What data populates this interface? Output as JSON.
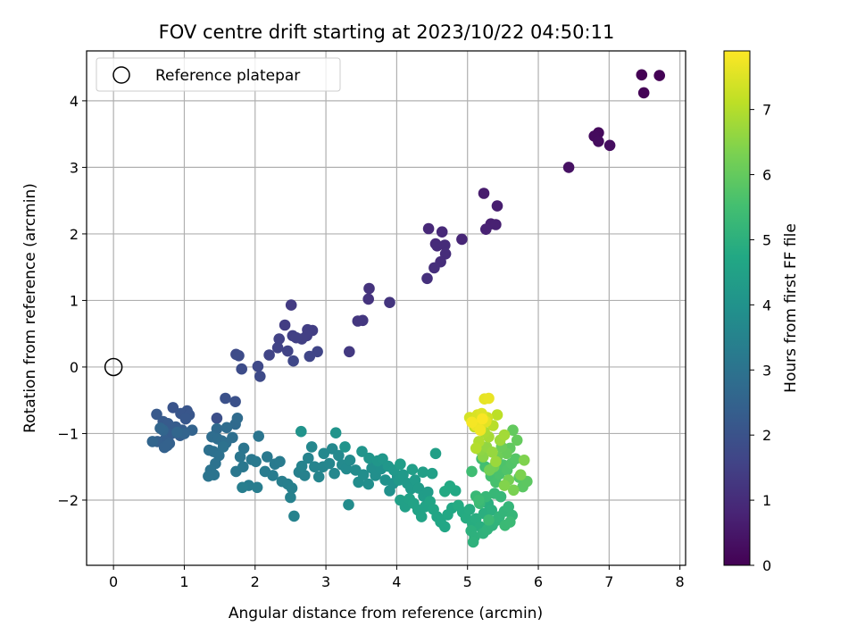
{
  "chart_data": {
    "type": "scatter",
    "title": "FOV centre drift starting at 2023/10/22 04:50:11",
    "xlabel": "Angular distance from reference (arcmin)",
    "ylabel": "Rotation from reference (arcmin)",
    "xlim": [
      -0.38,
      8.08
    ],
    "ylim": [
      -2.98,
      4.75
    ],
    "x_ticks": [
      0,
      1,
      2,
      3,
      4,
      5,
      6,
      7,
      8
    ],
    "y_ticks": [
      -2,
      -1,
      0,
      1,
      2,
      3,
      4
    ],
    "grid": true,
    "legend": {
      "position": "top-left",
      "entries": [
        "Reference platepar"
      ]
    },
    "reference_point": {
      "x": 0,
      "y": 0
    },
    "colorbar": {
      "label": "Hours from first FF file",
      "range": [
        0,
        7.9
      ],
      "ticks": [
        0,
        1,
        2,
        3,
        4,
        5,
        6,
        7
      ],
      "colormap": "viridis"
    },
    "points": [
      [
        7.46,
        4.39,
        0.0
      ],
      [
        7.71,
        4.38,
        0.02
      ],
      [
        7.49,
        4.12,
        0.05
      ],
      [
        6.85,
        3.52,
        0.2
      ],
      [
        6.79,
        3.47,
        0.22
      ],
      [
        6.85,
        3.39,
        0.25
      ],
      [
        7.01,
        3.33,
        0.28
      ],
      [
        6.43,
        3.0,
        0.35
      ],
      [
        5.23,
        2.61,
        0.6
      ],
      [
        5.42,
        2.42,
        0.65
      ],
      [
        5.33,
        2.15,
        0.7
      ],
      [
        5.4,
        2.14,
        0.72
      ],
      [
        5.26,
        2.07,
        0.75
      ],
      [
        4.92,
        1.92,
        0.85
      ],
      [
        4.45,
        2.08,
        0.9
      ],
      [
        4.64,
        2.03,
        0.92
      ],
      [
        4.55,
        1.85,
        0.95
      ],
      [
        4.57,
        1.82,
        0.97
      ],
      [
        4.68,
        1.83,
        0.98
      ],
      [
        4.69,
        1.7,
        1.0
      ],
      [
        4.62,
        1.58,
        1.02
      ],
      [
        4.53,
        1.49,
        1.05
      ],
      [
        4.43,
        1.33,
        1.08
      ],
      [
        3.61,
        1.18,
        1.15
      ],
      [
        3.6,
        1.02,
        1.18
      ],
      [
        3.9,
        0.97,
        1.2
      ],
      [
        3.45,
        0.69,
        1.25
      ],
      [
        3.52,
        0.7,
        1.27
      ],
      [
        3.33,
        0.23,
        1.3
      ],
      [
        2.51,
        0.93,
        1.35
      ],
      [
        2.42,
        0.63,
        1.4
      ],
      [
        2.81,
        0.55,
        1.42
      ],
      [
        2.74,
        0.56,
        1.43
      ],
      [
        2.73,
        0.47,
        1.45
      ],
      [
        2.66,
        0.42,
        1.47
      ],
      [
        2.53,
        0.47,
        1.48
      ],
      [
        2.58,
        0.44,
        1.5
      ],
      [
        2.34,
        0.42,
        1.52
      ],
      [
        2.32,
        0.29,
        1.55
      ],
      [
        2.46,
        0.24,
        1.57
      ],
      [
        2.2,
        0.18,
        1.6
      ],
      [
        2.88,
        0.23,
        1.62
      ],
      [
        2.77,
        0.16,
        1.65
      ],
      [
        2.54,
        0.09,
        1.68
      ],
      [
        2.04,
        0.01,
        1.72
      ],
      [
        2.07,
        -0.14,
        1.75
      ],
      [
        1.73,
        0.19,
        1.78
      ],
      [
        1.77,
        0.17,
        1.8
      ],
      [
        1.81,
        -0.03,
        1.82
      ],
      [
        1.46,
        -0.77,
        1.9
      ],
      [
        1.58,
        -0.47,
        1.95
      ],
      [
        1.72,
        -0.52,
        1.97
      ],
      [
        0.84,
        -0.61,
        2.05
      ],
      [
        1.04,
        -0.66,
        2.08
      ],
      [
        0.95,
        -0.7,
        2.1
      ],
      [
        1.07,
        -0.72,
        2.12
      ],
      [
        1.02,
        -0.78,
        2.15
      ],
      [
        0.61,
        -0.71,
        2.2
      ],
      [
        0.7,
        -0.82,
        2.22
      ],
      [
        0.77,
        -0.85,
        2.25
      ],
      [
        0.88,
        -0.9,
        2.28
      ],
      [
        0.97,
        -0.95,
        2.3
      ],
      [
        0.82,
        -1.0,
        2.32
      ],
      [
        0.94,
        -1.03,
        2.35
      ],
      [
        0.72,
        -1.1,
        2.38
      ],
      [
        0.62,
        -1.12,
        2.4
      ],
      [
        0.79,
        -1.15,
        2.42
      ],
      [
        0.72,
        -1.21,
        2.45
      ],
      [
        0.76,
        -1.18,
        2.47
      ],
      [
        1.11,
        -0.95,
        2.5
      ],
      [
        1.0,
        -1.0,
        2.52
      ],
      [
        0.7,
        -0.95,
        2.55
      ],
      [
        0.55,
        -1.12,
        2.57
      ],
      [
        0.66,
        -0.92,
        2.58
      ],
      [
        0.9,
        -0.98,
        2.6
      ],
      [
        1.46,
        -0.93,
        2.7
      ],
      [
        1.72,
        -0.86,
        2.72
      ],
      [
        1.75,
        -0.77,
        2.75
      ],
      [
        1.6,
        -0.91,
        2.77
      ],
      [
        1.39,
        -1.05,
        2.8
      ],
      [
        1.47,
        -1.08,
        2.82
      ],
      [
        1.53,
        -1.11,
        2.84
      ],
      [
        1.68,
        -1.06,
        2.86
      ],
      [
        1.59,
        -1.14,
        2.88
      ],
      [
        1.35,
        -1.25,
        2.9
      ],
      [
        1.41,
        -1.27,
        2.92
      ],
      [
        1.49,
        -1.33,
        2.94
      ],
      [
        1.55,
        -1.2,
        2.96
      ],
      [
        1.44,
        -1.45,
        2.98
      ],
      [
        1.37,
        -1.55,
        3.0
      ],
      [
        1.42,
        -1.62,
        3.02
      ],
      [
        1.34,
        -1.64,
        3.04
      ],
      [
        1.84,
        -1.22,
        3.06
      ],
      [
        2.05,
        -1.04,
        3.08
      ],
      [
        1.79,
        -1.35,
        3.1
      ],
      [
        1.73,
        -1.57,
        3.12
      ],
      [
        1.83,
        -1.5,
        3.14
      ],
      [
        1.95,
        -1.39,
        3.16
      ],
      [
        2.01,
        -1.42,
        3.18
      ],
      [
        2.17,
        -1.35,
        3.2
      ],
      [
        2.28,
        -1.46,
        3.22
      ],
      [
        2.35,
        -1.42,
        3.24
      ],
      [
        2.14,
        -1.57,
        3.26
      ],
      [
        2.25,
        -1.63,
        3.28
      ],
      [
        1.91,
        -1.78,
        3.3
      ],
      [
        2.03,
        -1.81,
        3.32
      ],
      [
        1.82,
        -1.81,
        3.34
      ],
      [
        2.38,
        -1.72,
        3.36
      ],
      [
        2.46,
        -1.76,
        3.38
      ],
      [
        2.52,
        -1.82,
        3.4
      ],
      [
        2.62,
        -1.58,
        3.42
      ],
      [
        2.7,
        -1.63,
        3.44
      ],
      [
        2.5,
        -1.96,
        3.46
      ],
      [
        2.55,
        -2.24,
        3.48
      ],
      [
        2.66,
        -1.49,
        3.5
      ],
      [
        2.75,
        -1.37,
        3.52
      ],
      [
        2.84,
        -1.5,
        3.54
      ],
      [
        2.9,
        -1.65,
        3.56
      ],
      [
        2.96,
        -1.5,
        3.58
      ],
      [
        3.05,
        -1.45,
        3.6
      ],
      [
        3.12,
        -1.6,
        3.62
      ],
      [
        2.8,
        -1.2,
        3.64
      ],
      [
        2.97,
        -1.3,
        3.66
      ],
      [
        3.09,
        -1.23,
        3.68
      ],
      [
        3.18,
        -1.33,
        3.7
      ],
      [
        3.23,
        -1.47,
        3.72
      ],
      [
        3.29,
        -1.53,
        3.74
      ],
      [
        3.34,
        -1.4,
        3.76
      ],
      [
        3.42,
        -1.55,
        3.78
      ],
      [
        3.32,
        -2.07,
        3.8
      ],
      [
        3.46,
        -1.73,
        3.82
      ],
      [
        3.53,
        -1.62,
        3.84
      ],
      [
        3.6,
        -1.76,
        3.86
      ],
      [
        3.65,
        -1.52,
        3.88
      ],
      [
        3.7,
        -1.63,
        3.9
      ],
      [
        3.78,
        -1.53,
        3.92
      ],
      [
        3.84,
        -1.7,
        3.94
      ],
      [
        3.9,
        -1.86,
        3.96
      ],
      [
        3.95,
        -1.75,
        3.98
      ],
      [
        4.01,
        -1.64,
        4.0
      ],
      [
        2.65,
        -0.97,
        4.02
      ],
      [
        3.14,
        -0.99,
        4.04
      ],
      [
        3.27,
        -1.2,
        4.06
      ],
      [
        3.51,
        -1.27,
        4.08
      ],
      [
        3.61,
        -1.37,
        4.1
      ],
      [
        3.73,
        -1.41,
        4.12
      ],
      [
        3.8,
        -1.38,
        4.14
      ],
      [
        3.88,
        -1.49,
        4.16
      ],
      [
        3.96,
        -1.55,
        4.18
      ],
      [
        4.03,
        -1.7,
        4.2
      ],
      [
        4.09,
        -1.62,
        4.22
      ],
      [
        4.15,
        -1.75,
        4.24
      ],
      [
        4.2,
        -1.83,
        4.26
      ],
      [
        4.26,
        -1.7,
        4.28
      ],
      [
        4.31,
        -1.82,
        4.3
      ],
      [
        4.38,
        -1.94,
        4.32
      ],
      [
        4.44,
        -1.88,
        4.34
      ],
      [
        4.05,
        -1.46,
        4.36
      ],
      [
        4.22,
        -1.54,
        4.38
      ],
      [
        4.37,
        -1.58,
        4.4
      ],
      [
        4.5,
        -1.6,
        4.42
      ],
      [
        4.55,
        -1.3,
        4.44
      ],
      [
        4.05,
        -2.0,
        4.46
      ],
      [
        4.12,
        -2.1,
        4.48
      ],
      [
        4.18,
        -1.98,
        4.5
      ],
      [
        4.24,
        -2.05,
        4.52
      ],
      [
        4.3,
        -2.15,
        4.54
      ],
      [
        4.35,
        -2.25,
        4.56
      ],
      [
        4.4,
        -2.1,
        4.58
      ],
      [
        4.47,
        -2.02,
        4.6
      ],
      [
        4.52,
        -2.14,
        4.62
      ],
      [
        4.57,
        -2.25,
        4.64
      ],
      [
        4.62,
        -2.33,
        4.66
      ],
      [
        4.68,
        -2.4,
        4.68
      ],
      [
        4.72,
        -2.22,
        4.7
      ],
      [
        4.78,
        -2.12,
        4.72
      ],
      [
        4.83,
        -1.86,
        4.74
      ],
      [
        4.75,
        -1.79,
        4.76
      ],
      [
        4.68,
        -1.87,
        4.78
      ],
      [
        4.87,
        -2.08,
        4.8
      ],
      [
        4.93,
        -2.18,
        4.82
      ],
      [
        4.98,
        -2.27,
        4.84
      ],
      [
        5.03,
        -2.14,
        4.86
      ],
      [
        5.07,
        -2.35,
        4.88
      ],
      [
        5.12,
        -2.28,
        4.9
      ],
      [
        5.18,
        -2.4,
        4.92
      ],
      [
        5.23,
        -2.2,
        4.94
      ],
      [
        5.29,
        -2.05,
        4.96
      ],
      [
        5.34,
        -2.15,
        4.98
      ],
      [
        5.05,
        -2.46,
        5.0
      ],
      [
        5.1,
        -2.55,
        5.02
      ],
      [
        5.08,
        -2.63,
        5.04
      ],
      [
        5.22,
        -2.5,
        5.06
      ],
      [
        5.28,
        -2.44,
        5.08
      ],
      [
        5.35,
        -2.38,
        5.1
      ],
      [
        5.4,
        -2.31,
        5.12
      ],
      [
        5.45,
        -2.25,
        5.14
      ],
      [
        5.52,
        -2.17,
        5.16
      ],
      [
        5.58,
        -2.1,
        5.18
      ],
      [
        5.63,
        -2.23,
        5.2
      ],
      [
        5.47,
        -1.95,
        5.22
      ],
      [
        5.38,
        -1.9,
        5.24
      ],
      [
        5.26,
        -1.95,
        5.26
      ],
      [
        5.12,
        -1.94,
        5.28
      ],
      [
        5.17,
        -2.05,
        5.3
      ],
      [
        5.53,
        -2.38,
        5.32
      ],
      [
        5.6,
        -2.33,
        5.34
      ],
      [
        5.3,
        -2.3,
        5.36
      ],
      [
        5.16,
        -2.0,
        5.38
      ],
      [
        5.06,
        -1.57,
        5.42
      ],
      [
        5.2,
        -1.38,
        5.46
      ],
      [
        5.25,
        -1.5,
        5.5
      ],
      [
        5.33,
        -1.64,
        5.54
      ],
      [
        5.4,
        -1.73,
        5.58
      ],
      [
        5.45,
        -1.61,
        5.62
      ],
      [
        5.5,
        -1.47,
        5.66
      ],
      [
        5.56,
        -1.55,
        5.7
      ],
      [
        5.62,
        -1.45,
        5.74
      ],
      [
        5.68,
        -1.38,
        5.78
      ],
      [
        5.73,
        -1.66,
        5.82
      ],
      [
        5.78,
        -1.8,
        5.86
      ],
      [
        5.84,
        -1.72,
        5.9
      ],
      [
        5.6,
        -1.22,
        5.94
      ],
      [
        5.64,
        -0.95,
        5.98
      ],
      [
        5.7,
        -1.1,
        6.02
      ],
      [
        5.55,
        -1.3,
        6.06
      ],
      [
        5.48,
        -1.2,
        6.1
      ],
      [
        5.42,
        -1.35,
        6.14
      ],
      [
        5.37,
        -1.5,
        6.18
      ],
      [
        5.31,
        -1.55,
        6.22
      ],
      [
        5.58,
        -1.7,
        6.26
      ],
      [
        5.65,
        -1.85,
        6.3
      ],
      [
        5.75,
        -1.62,
        6.34
      ],
      [
        5.8,
        -1.4,
        6.38
      ],
      [
        5.52,
        -1.78,
        6.42
      ],
      [
        5.22,
        -1.35,
        6.5
      ],
      [
        5.18,
        -1.25,
        6.55
      ],
      [
        5.27,
        -1.2,
        6.6
      ],
      [
        5.35,
        -1.28,
        6.65
      ],
      [
        5.4,
        -1.42,
        6.7
      ],
      [
        5.46,
        -1.1,
        6.75
      ],
      [
        5.52,
        -1.02,
        6.8
      ],
      [
        5.3,
        -1.05,
        6.85
      ],
      [
        5.24,
        -0.98,
        6.9
      ],
      [
        5.16,
        -1.12,
        6.95
      ],
      [
        5.12,
        -1.22,
        7.0
      ],
      [
        5.36,
        -0.88,
        7.05
      ],
      [
        5.42,
        -0.72,
        7.1
      ],
      [
        5.1,
        -0.9,
        7.15
      ],
      [
        5.08,
        -0.78,
        7.2
      ],
      [
        5.16,
        -0.8,
        7.25
      ],
      [
        5.22,
        -0.85,
        7.3
      ],
      [
        5.28,
        -0.76,
        7.35
      ],
      [
        5.03,
        -0.76,
        7.4
      ],
      [
        5.14,
        -0.72,
        7.45
      ],
      [
        5.2,
        -0.7,
        7.5
      ],
      [
        5.26,
        -0.82,
        7.55
      ],
      [
        5.24,
        -0.48,
        7.6
      ],
      [
        5.3,
        -0.47,
        7.65
      ],
      [
        5.12,
        -0.88,
        7.7
      ],
      [
        5.18,
        -0.95,
        7.75
      ],
      [
        5.06,
        -0.83,
        7.8
      ],
      [
        5.21,
        -0.78,
        7.85
      ]
    ]
  }
}
